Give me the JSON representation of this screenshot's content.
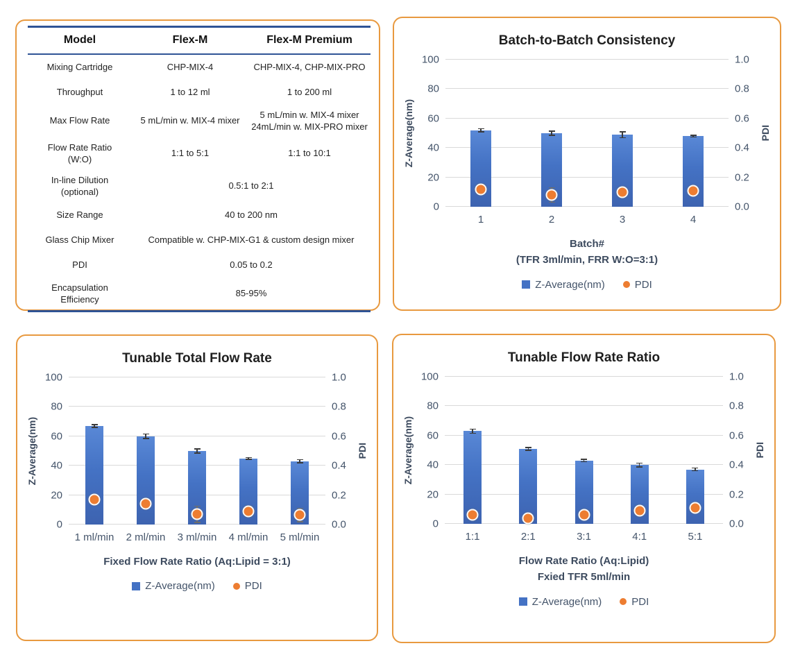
{
  "colors": {
    "panel_border": "#E8993F",
    "bar_fill": "#4472C4",
    "dot_fill": "#ED7D31",
    "gridline": "#D9D9D9",
    "tick_text": "#44546A",
    "axis_title_text": "#3C4A5E",
    "chart_title_text": "#1F1F1F",
    "table_line": "#2F5496",
    "z_error_bar": "#3A3A3A",
    "pdi_error_bar": "#6E6E6E"
  },
  "spec_table": {
    "headers": [
      "Model",
      "Flex-M",
      "Flex-M Premium"
    ],
    "rows": [
      {
        "label": "Mixing Cartridge",
        "flex_m": "CHP-MIX-4",
        "premium": "CHP-MIX-4, CHP-MIX-PRO"
      },
      {
        "label": "Throughput",
        "flex_m": "1 to 12 ml",
        "premium": "1 to 200 ml"
      },
      {
        "label": "Max Flow Rate",
        "flex_m": "5 mL/min w. MIX-4 mixer",
        "premium": "5 mL/min w. MIX-4 mixer\n24mL/min w. MIX-PRO mixer"
      },
      {
        "label": "Flow Rate Ratio\n(W:O)",
        "flex_m": "1:1 to 5:1",
        "premium": "1:1 to 10:1"
      },
      {
        "label": "In-line Dilution\n(optional)",
        "span": "0.5:1 to 2:1"
      },
      {
        "label": "Size Range",
        "span": "40 to 200 nm"
      },
      {
        "label": "Glass Chip Mixer",
        "span": "Compatible w. CHP-MIX-G1 & custom design mixer"
      },
      {
        "label": "PDI",
        "span": "0.05 to 0.2"
      },
      {
        "label": "Encapsulation\nEfficiency",
        "span": "85-95%"
      }
    ]
  },
  "chart_data": [
    {
      "type": "bar",
      "title": "Batch-to-Batch Consistency",
      "categories": [
        "1",
        "2",
        "3",
        "4"
      ],
      "series": [
        {
          "name": "Z-Average(nm)",
          "axis": "left",
          "marker": "bar",
          "values": [
            52,
            50,
            49,
            48
          ],
          "errors": [
            1,
            1.5,
            2,
            0.7
          ]
        },
        {
          "name": "PDI",
          "axis": "right",
          "marker": "dot",
          "values": [
            0.12,
            0.08,
            0.1,
            0.11
          ],
          "errors": [
            0.03,
            0.05,
            0.02,
            0.03
          ]
        }
      ],
      "left_axis": {
        "label": "Z-Average(nm)",
        "min": 0,
        "max": 100,
        "ticks": [
          "100",
          "80",
          "60",
          "40",
          "20",
          "0"
        ]
      },
      "right_axis": {
        "label": "PDI",
        "min": 0,
        "max": 1,
        "ticks": [
          "1.0",
          "0.8",
          "0.6",
          "0.4",
          "0.2",
          "0.0"
        ]
      },
      "xlabel_lines": [
        "Batch#",
        "(TFR 3ml/min, FRR W:O=3:1)"
      ],
      "legend": [
        "Z-Average(nm)",
        "PDI"
      ],
      "grid": true,
      "legend_position": "bottom"
    },
    {
      "type": "bar",
      "title": "Tunable Total Flow Rate",
      "categories": [
        "1 ml/min",
        "2 ml/min",
        "3 ml/min",
        "4 ml/min",
        "5 ml/min"
      ],
      "series": [
        {
          "name": "Z-Average(nm)",
          "axis": "left",
          "marker": "bar",
          "values": [
            67,
            60,
            50,
            45,
            43
          ],
          "errors": [
            1,
            1.5,
            1.5,
            0.6,
            1
          ]
        },
        {
          "name": "PDI",
          "axis": "right",
          "marker": "dot",
          "values": [
            0.17,
            0.14,
            0.07,
            0.09,
            0.065
          ],
          "errors": [
            0.005,
            0.03,
            0.055,
            0.035,
            0.045
          ]
        }
      ],
      "left_axis": {
        "label": "Z-Average(nm)",
        "min": 0,
        "max": 100,
        "ticks": [
          "100",
          "80",
          "60",
          "40",
          "20",
          "0"
        ]
      },
      "right_axis": {
        "label": "PDI",
        "min": 0,
        "max": 1,
        "ticks": [
          "1.0",
          "0.8",
          "0.6",
          "0.4",
          "0.2",
          "0.0"
        ]
      },
      "xlabel_lines": [
        "Fixed Flow Rate Ratio (Aq:Lipid = 3:1)"
      ],
      "legend": [
        "Z-Average(nm)",
        "PDI"
      ],
      "grid": true,
      "legend_position": "bottom"
    },
    {
      "type": "bar",
      "title": "Tunable Flow Rate Ratio",
      "categories": [
        "1:1",
        "2:1",
        "3:1",
        "4:1",
        "5:1"
      ],
      "series": [
        {
          "name": "Z-Average(nm)",
          "axis": "left",
          "marker": "bar",
          "values": [
            63,
            51,
            43,
            40,
            37
          ],
          "errors": [
            1.5,
            1,
            0.8,
            1.2,
            1
          ]
        },
        {
          "name": "PDI",
          "axis": "right",
          "marker": "dot",
          "values": [
            0.06,
            0.04,
            0.06,
            0.09,
            0.11
          ],
          "errors": [
            0.01,
            0.01,
            0.025,
            0.01,
            0.005
          ]
        }
      ],
      "left_axis": {
        "label": "Z-Average(nm)",
        "min": 0,
        "max": 100,
        "ticks": [
          "100",
          "80",
          "60",
          "40",
          "20",
          "0"
        ]
      },
      "right_axis": {
        "label": "PDI",
        "min": 0,
        "max": 1,
        "ticks": [
          "1.0",
          "0.8",
          "0.6",
          "0.4",
          "0.2",
          "0.0"
        ]
      },
      "xlabel_lines": [
        "Flow Rate Ratio (Aq:Lipid)",
        "Fxied TFR 5ml/min"
      ],
      "legend": [
        "Z-Average(nm)",
        "PDI"
      ],
      "grid": true,
      "legend_position": "bottom"
    }
  ]
}
